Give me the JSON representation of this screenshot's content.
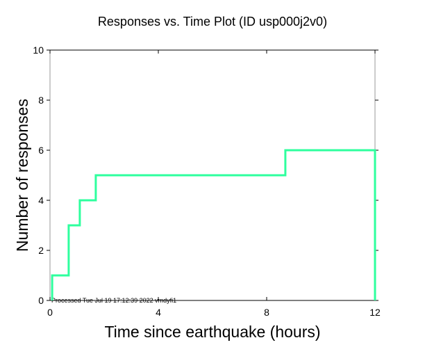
{
  "chart_data": {
    "type": "line",
    "title": "Responses vs. Time Plot (ID usp000j2v0)",
    "xlabel": "Time since earthquake (hours)",
    "ylabel": "Number of responses",
    "xlim": [
      0,
      12
    ],
    "ylim": [
      0,
      10
    ],
    "xticks": [
      0,
      4,
      8,
      12
    ],
    "yticks": [
      0,
      2,
      4,
      6,
      8,
      10
    ],
    "grid": false,
    "step": true,
    "series": [
      {
        "name": "responses",
        "color": "#2eff9e",
        "x": [
          0.08,
          0.69,
          1.1,
          1.69,
          8.69,
          12
        ],
        "y": [
          1,
          3,
          4,
          5,
          6,
          0
        ]
      }
    ],
    "annotation": "Processed Tue Jul 19 17:12:39 2022 vmdyfi1"
  }
}
